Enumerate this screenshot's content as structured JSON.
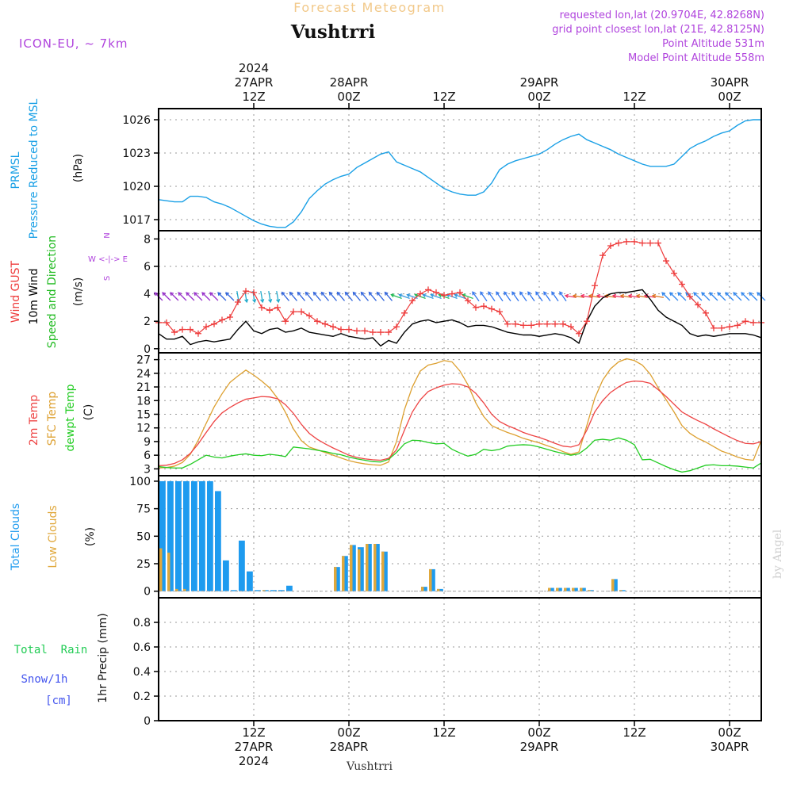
{
  "header": {
    "title": "Forecast Meteogram",
    "location": "Vushtrri",
    "model": "ICON-EU, ~ 7km",
    "requested": "requested lon,lat (20.9704E, 42.8268N)",
    "grid_point": "grid point closest lon,lat (21E, 42.8125N)",
    "point_altitude": "Point Altitude 531m",
    "model_altitude": "Model Point Altitude 558m",
    "watermark": "by Angel",
    "footer_location": "Vushtrri"
  },
  "colors": {
    "pressure": "#1aa0e6",
    "gust": "#ee3b3b",
    "wind": "#000000",
    "dir_label": "#22bb22",
    "temp2m": "#ee4444",
    "sfc": "#dda030",
    "dew": "#22cc22",
    "total_cloud": "#1e9bef",
    "low_cloud": "#e0a83c",
    "rain": "#22cc55",
    "snow": "#4455ee",
    "purple": "#b044dd",
    "title": "#f2c98a"
  },
  "time_axis": {
    "top_labels": [
      {
        "x": 12,
        "lines": [
          "2024",
          "27APR",
          "12Z"
        ]
      },
      {
        "x": 24,
        "lines": [
          "28APR",
          "00Z"
        ]
      },
      {
        "x": 36,
        "lines": [
          "12Z"
        ]
      },
      {
        "x": 48,
        "lines": [
          "29APR",
          "00Z"
        ]
      },
      {
        "x": 60,
        "lines": [
          "12Z"
        ]
      },
      {
        "x": 72,
        "lines": [
          "30APR",
          "00Z"
        ]
      }
    ],
    "bottom_labels": [
      {
        "x": 12,
        "lines": [
          "12Z",
          "27APR",
          "2024"
        ]
      },
      {
        "x": 24,
        "lines": [
          "00Z",
          "28APR"
        ]
      },
      {
        "x": 36,
        "lines": [
          "12Z"
        ]
      },
      {
        "x": 48,
        "lines": [
          "00Z",
          "29APR"
        ]
      },
      {
        "x": 60,
        "lines": [
          "12Z"
        ]
      },
      {
        "x": 72,
        "lines": [
          "00Z",
          "30APR"
        ]
      }
    ]
  },
  "chart_data": [
    {
      "type": "line",
      "id": "pressure",
      "ylabel": "(hPa)",
      "side_labels": [
        "PRMSL",
        "Pressure Reduced to MSL"
      ],
      "ylim": [
        1016,
        1027
      ],
      "yticks": [
        1017,
        1020,
        1023,
        1026
      ],
      "x": [
        0,
        1,
        2,
        3,
        4,
        5,
        6,
        7,
        8,
        9,
        10,
        11,
        12,
        13,
        14,
        15,
        16,
        17,
        18,
        19,
        20,
        21,
        22,
        23,
        24,
        25,
        26,
        27,
        28,
        29,
        30,
        31,
        32,
        33,
        34,
        35,
        36,
        37,
        38,
        39,
        40,
        41,
        42,
        43,
        44,
        45,
        46,
        47,
        48,
        49,
        50,
        51,
        52,
        53,
        54,
        55,
        56,
        57,
        58,
        59,
        60,
        61,
        62,
        63,
        64,
        65,
        66,
        67,
        68,
        69,
        70,
        71,
        72,
        73,
        74,
        75,
        76
      ],
      "series": [
        {
          "name": "PRMSL",
          "values": [
            1018.8,
            1018.7,
            1018.6,
            1018.6,
            1019.1,
            1019.1,
            1019.0,
            1018.6,
            1018.4,
            1018.1,
            1017.7,
            1017.3,
            1016.9,
            1016.6,
            1016.4,
            1016.3,
            1016.3,
            1016.8,
            1017.7,
            1018.9,
            1019.6,
            1020.2,
            1020.6,
            1020.9,
            1021.1,
            1021.7,
            1022.1,
            1022.5,
            1022.9,
            1023.1,
            1022.2,
            1021.9,
            1021.6,
            1021.3,
            1020.8,
            1020.3,
            1019.8,
            1019.5,
            1019.3,
            1019.2,
            1019.2,
            1019.5,
            1020.3,
            1021.5,
            1022.0,
            1022.3,
            1022.5,
            1022.7,
            1022.9,
            1023.3,
            1023.8,
            1024.2,
            1024.5,
            1024.7,
            1024.2,
            1023.9,
            1023.6,
            1023.3,
            1022.9,
            1022.6,
            1022.3,
            1022.0,
            1021.8,
            1021.8,
            1021.8,
            1022.0,
            1022.7,
            1023.4,
            1023.8,
            1024.1,
            1024.5,
            1024.8,
            1025.0,
            1025.5,
            1025.9,
            1026.0,
            1026.0
          ]
        }
      ]
    },
    {
      "type": "line",
      "id": "wind",
      "ylabel": "(m/s)",
      "side_labels": [
        "Wind GUST",
        "10m Wind",
        "Speed and Direction"
      ],
      "compass": [
        "N",
        "W <-|-> E",
        "S"
      ],
      "ylim": [
        -0.3,
        8.6
      ],
      "yticks": [
        0,
        2,
        4,
        6,
        8
      ],
      "x": [
        0,
        1,
        2,
        3,
        4,
        5,
        6,
        7,
        8,
        9,
        10,
        11,
        12,
        13,
        14,
        15,
        16,
        17,
        18,
        19,
        20,
        21,
        22,
        23,
        24,
        25,
        26,
        27,
        28,
        29,
        30,
        31,
        32,
        33,
        34,
        35,
        36,
        37,
        38,
        39,
        40,
        41,
        42,
        43,
        44,
        45,
        46,
        47,
        48,
        49,
        50,
        51,
        52,
        53,
        54,
        55,
        56,
        57,
        58,
        59,
        60,
        61,
        62,
        63,
        64,
        65,
        66,
        67,
        68,
        69,
        70,
        71,
        72,
        73,
        74,
        75,
        76
      ],
      "series": [
        {
          "name": "Wind GUST",
          "values": [
            1.9,
            1.9,
            1.2,
            1.4,
            1.4,
            1.1,
            1.6,
            1.8,
            2.1,
            2.3,
            3.4,
            4.2,
            4.1,
            3.0,
            2.8,
            3.0,
            2.0,
            2.7,
            2.7,
            2.4,
            2.0,
            1.8,
            1.6,
            1.4,
            1.4,
            1.3,
            1.3,
            1.2,
            1.2,
            1.2,
            1.6,
            2.6,
            3.5,
            4.0,
            4.3,
            4.1,
            3.9,
            4.0,
            4.1,
            3.5,
            3.0,
            3.1,
            2.9,
            2.7,
            1.8,
            1.8,
            1.7,
            1.7,
            1.8,
            1.8,
            1.8,
            1.8,
            1.6,
            1.1,
            2.0,
            4.6,
            6.8,
            7.5,
            7.7,
            7.8,
            7.8,
            7.7,
            7.7,
            7.7,
            6.4,
            5.5,
            4.7,
            3.8,
            3.2,
            2.6,
            1.5,
            1.5,
            1.6,
            1.7,
            2.0,
            1.9,
            1.9
          ]
        },
        {
          "name": "10m Wind",
          "values": [
            1.1,
            0.7,
            0.7,
            0.9,
            0.3,
            0.5,
            0.6,
            0.5,
            0.6,
            0.7,
            1.4,
            2.0,
            1.3,
            1.1,
            1.4,
            1.5,
            1.2,
            1.3,
            1.5,
            1.2,
            1.1,
            1.0,
            0.9,
            1.1,
            0.9,
            0.8,
            0.7,
            0.8,
            0.2,
            0.6,
            0.4,
            1.2,
            1.8,
            2.0,
            2.1,
            1.9,
            2.0,
            2.1,
            1.9,
            1.6,
            1.7,
            1.7,
            1.6,
            1.4,
            1.2,
            1.1,
            1.0,
            1.0,
            0.9,
            1.0,
            1.1,
            1.0,
            0.8,
            0.4,
            2.0,
            3.1,
            3.7,
            4.0,
            4.1,
            4.1,
            4.2,
            4.3,
            3.6,
            2.8,
            2.3,
            2.0,
            1.7,
            1.1,
            0.9,
            1.0,
            0.9,
            1.0,
            1.1,
            1.1,
            1.1,
            1.0,
            0.8
          ]
        }
      ],
      "arrows_y": 3.8
    },
    {
      "type": "line",
      "id": "temperature",
      "ylabel": "(C)",
      "side_labels": [
        "2m Temp",
        "SFC Temp",
        "dewpt Temp"
      ],
      "ylim": [
        1.5,
        28.5
      ],
      "yticks": [
        3,
        6,
        9,
        12,
        15,
        18,
        21,
        24,
        27
      ],
      "x": [
        0,
        1,
        2,
        3,
        4,
        5,
        6,
        7,
        8,
        9,
        10,
        11,
        12,
        13,
        14,
        15,
        16,
        17,
        18,
        19,
        20,
        21,
        22,
        23,
        24,
        25,
        26,
        27,
        28,
        29,
        30,
        31,
        32,
        33,
        34,
        35,
        36,
        37,
        38,
        39,
        40,
        41,
        42,
        43,
        44,
        45,
        46,
        47,
        48,
        49,
        50,
        51,
        52,
        53,
        54,
        55,
        56,
        57,
        58,
        59,
        60,
        61,
        62,
        63,
        64,
        65,
        66,
        67,
        68,
        69,
        70,
        71,
        72,
        73,
        74,
        75,
        76
      ],
      "series": [
        {
          "name": "2m Temp",
          "values": [
            3.7,
            3.8,
            4.2,
            5.0,
            6.4,
            8.5,
            11.0,
            13.4,
            15.3,
            16.5,
            17.5,
            18.3,
            18.6,
            18.9,
            18.8,
            18.4,
            17.1,
            15.2,
            12.8,
            10.8,
            9.5,
            8.5,
            7.6,
            6.8,
            6.0,
            5.5,
            5.2,
            5.0,
            4.9,
            5.3,
            7.2,
            11.5,
            15.5,
            18.2,
            20.0,
            20.8,
            21.4,
            21.7,
            21.6,
            21.0,
            19.6,
            17.5,
            15.0,
            13.4,
            12.5,
            11.8,
            11.0,
            10.4,
            9.9,
            9.3,
            8.6,
            8.0,
            7.8,
            8.3,
            11.5,
            15.5,
            18.0,
            19.8,
            21.0,
            22.0,
            22.3,
            22.2,
            21.8,
            20.4,
            18.9,
            17.2,
            15.5,
            14.5,
            13.6,
            12.8,
            11.8,
            10.9,
            10.0,
            9.2,
            8.6,
            8.5,
            9.0
          ]
        },
        {
          "name": "SFC Temp",
          "values": [
            3.2,
            3.3,
            3.6,
            4.4,
            6.2,
            9.3,
            13.0,
            16.6,
            19.5,
            22.0,
            23.4,
            24.7,
            23.6,
            22.3,
            20.8,
            18.5,
            15.4,
            11.8,
            9.2,
            7.8,
            7.2,
            6.6,
            6.0,
            5.4,
            4.8,
            4.4,
            4.1,
            3.9,
            3.8,
            4.5,
            9.0,
            16.0,
            21.0,
            24.5,
            25.8,
            26.2,
            26.8,
            26.5,
            24.5,
            21.5,
            17.5,
            14.5,
            12.5,
            11.7,
            11.0,
            10.4,
            9.7,
            9.2,
            8.7,
            8.1,
            7.5,
            6.8,
            6.2,
            6.7,
            12.5,
            18.5,
            22.5,
            25.0,
            26.5,
            27.2,
            26.8,
            25.8,
            23.8,
            20.8,
            18.2,
            15.5,
            12.5,
            10.8,
            9.7,
            8.9,
            7.9,
            6.9,
            6.3,
            5.6,
            5.1,
            4.9,
            9.3
          ]
        },
        {
          "name": "dewpt Temp",
          "values": [
            3.5,
            3.3,
            3.2,
            3.2,
            4.0,
            5.0,
            6.0,
            5.6,
            5.4,
            5.8,
            6.1,
            6.3,
            6.0,
            5.9,
            6.2,
            6.0,
            5.7,
            7.8,
            7.6,
            7.4,
            7.1,
            6.8,
            6.4,
            6.1,
            5.6,
            5.2,
            4.9,
            4.6,
            4.5,
            5.1,
            6.6,
            8.5,
            9.3,
            9.2,
            8.8,
            8.5,
            8.6,
            7.3,
            6.5,
            5.8,
            6.2,
            7.3,
            7.0,
            7.3,
            8.0,
            8.2,
            8.3,
            8.2,
            7.8,
            7.3,
            6.8,
            6.4,
            6.0,
            6.3,
            7.6,
            9.3,
            9.5,
            9.3,
            9.8,
            9.3,
            8.3,
            5.0,
            5.1,
            4.3,
            3.5,
            2.8,
            2.3,
            2.6,
            3.2,
            3.8,
            3.9,
            3.7,
            3.7,
            3.6,
            3.4,
            3.2,
            4.3
          ]
        }
      ]
    },
    {
      "type": "bar",
      "id": "clouds",
      "ylabel": "(%)",
      "side_labels": [
        "Total Clouds",
        "Low Clouds"
      ],
      "ylim": [
        -6,
        105
      ],
      "yticks": [
        0,
        25,
        50,
        75,
        100
      ],
      "x": [
        0,
        1,
        2,
        3,
        4,
        5,
        6,
        7,
        8,
        9,
        10,
        11,
        12,
        13,
        14,
        15,
        16,
        17,
        18,
        19,
        20,
        21,
        22,
        23,
        24,
        25,
        26,
        27,
        28,
        29,
        30,
        31,
        32,
        33,
        34,
        35,
        36,
        37,
        38,
        39,
        40,
        41,
        42,
        43,
        44,
        45,
        46,
        47,
        48,
        49,
        50,
        51,
        52,
        53,
        54,
        55,
        56,
        57,
        58,
        59,
        60,
        61,
        62,
        63,
        64,
        65,
        66,
        67,
        68,
        69,
        70,
        71,
        72,
        73,
        74,
        75,
        76
      ],
      "series": [
        {
          "name": "Total Clouds",
          "values": [
            100,
            100,
            100,
            100,
            100,
            100,
            100,
            91,
            28,
            1,
            46,
            18,
            1,
            1,
            1,
            1,
            5,
            0,
            0,
            0,
            0,
            0,
            22,
            32,
            42,
            40,
            43,
            43,
            36,
            0,
            0,
            0,
            0,
            4,
            20,
            2,
            0,
            0,
            0,
            0,
            0,
            0,
            0,
            0,
            0,
            0,
            0,
            0,
            0,
            3,
            3,
            3,
            3,
            3,
            1,
            0,
            0,
            11,
            1,
            0,
            0,
            0,
            0,
            0,
            0,
            0,
            0,
            0,
            0,
            0,
            0,
            0,
            0,
            0,
            0,
            0,
            0
          ]
        },
        {
          "name": "Low Clouds",
          "values": [
            39,
            35,
            2,
            2,
            0,
            0,
            0,
            0,
            0,
            0,
            0,
            0,
            0,
            1,
            0,
            0,
            0,
            0,
            0,
            0,
            0,
            0,
            22,
            32,
            42,
            38,
            43,
            43,
            36,
            0,
            0,
            0,
            0,
            4,
            20,
            2,
            0,
            0,
            0,
            0,
            0,
            0,
            0,
            0,
            0,
            0,
            0,
            0,
            0,
            3,
            3,
            3,
            3,
            3,
            1,
            0,
            0,
            11,
            1,
            0,
            0,
            0,
            0,
            0,
            0,
            0,
            0,
            0,
            0,
            0,
            0,
            0,
            0,
            0,
            0,
            0,
            0
          ]
        }
      ]
    },
    {
      "type": "bar",
      "id": "precip",
      "ylabel": "1hr Precip (mm)",
      "side_labels": [
        "Total  Rain",
        "Snow/1h",
        "[cm]"
      ],
      "ylim": [
        0,
        1.0
      ],
      "yticks": [
        0,
        0.2,
        0.4,
        0.6,
        0.8
      ],
      "ytick_labels": [
        "0",
        "0.2",
        "0.4",
        "0.6",
        "0.8"
      ],
      "series": [
        {
          "name": "Total Rain",
          "values": []
        },
        {
          "name": "Snow/1h",
          "values": []
        }
      ]
    }
  ]
}
